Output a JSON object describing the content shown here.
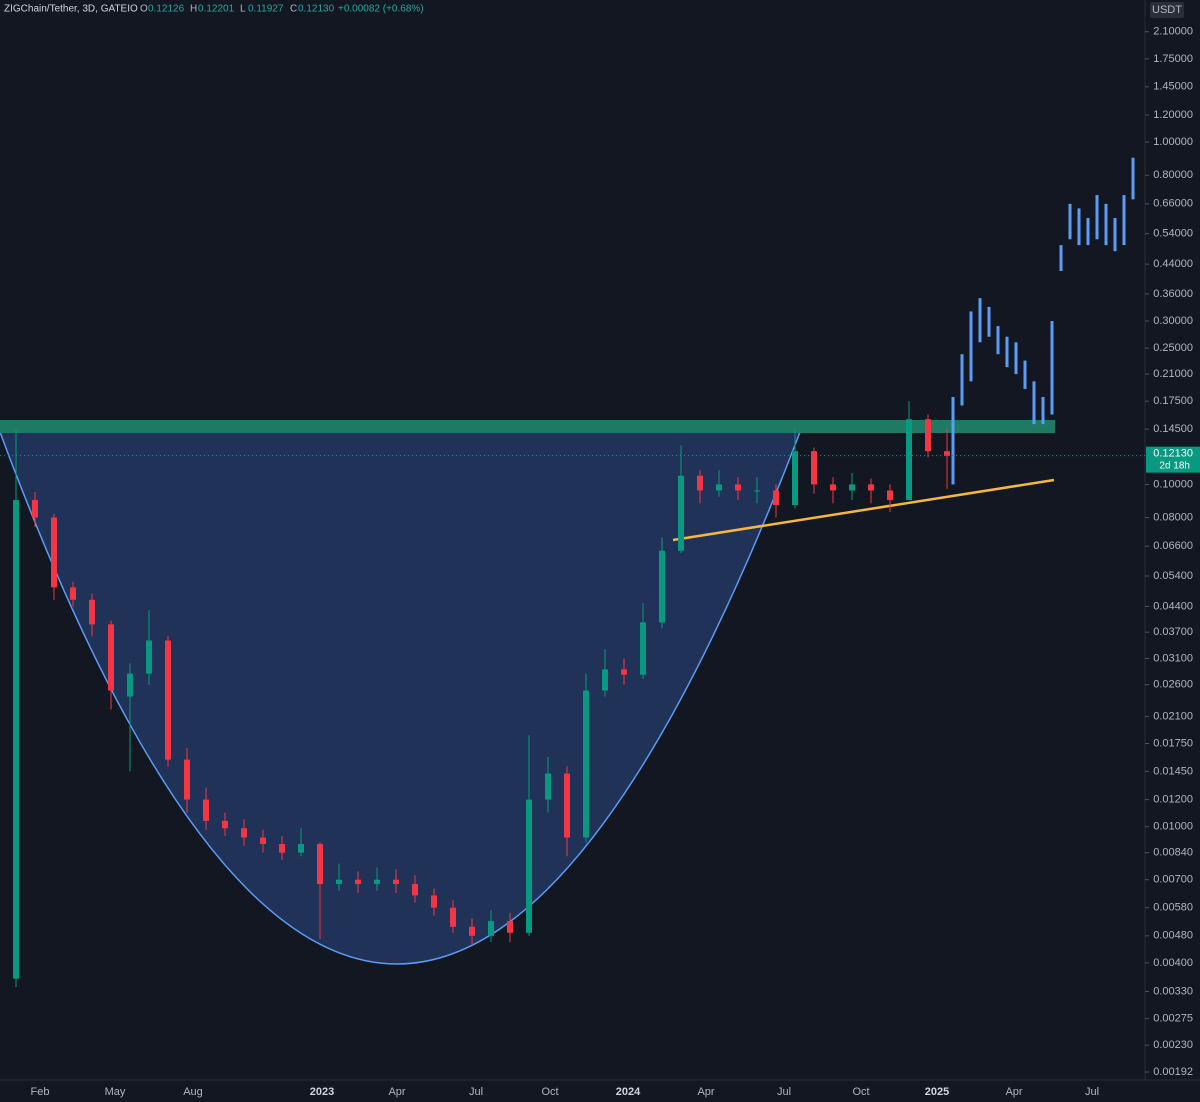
{
  "header": {
    "symbol": "ZIGChain/Tether, 3D, GATEIO",
    "ohlc": [
      {
        "label": "O",
        "value": "0.12126"
      },
      {
        "label": "H",
        "value": "0.12201"
      },
      {
        "label": "L",
        "value": "0.11927"
      },
      {
        "label": "C",
        "value": "0.12130"
      }
    ],
    "change": "+0.00082 (+0.68%)"
  },
  "chart_data": {
    "type": "candlestick",
    "currency": "USDT",
    "log_scale": true,
    "ylim": [
      0.00182,
      2.6
    ],
    "yticks": [
      {
        "value": 2.1,
        "label": "2.10000"
      },
      {
        "value": 1.75,
        "label": "1.75000"
      },
      {
        "value": 1.45,
        "label": "1.45000"
      },
      {
        "value": 1.2,
        "label": "1.20000"
      },
      {
        "value": 1,
        "label": "1.00000"
      },
      {
        "value": 0.8,
        "label": "0.80000"
      },
      {
        "value": 0.66,
        "label": "0.66000"
      },
      {
        "value": 0.54,
        "label": "0.54000"
      },
      {
        "value": 0.44,
        "label": "0.44000"
      },
      {
        "value": 0.36,
        "label": "0.36000"
      },
      {
        "value": 0.3,
        "label": "0.30000"
      },
      {
        "value": 0.25,
        "label": "0.25000"
      },
      {
        "value": 0.21,
        "label": "0.21000"
      },
      {
        "value": 0.175,
        "label": "0.17500"
      },
      {
        "value": 0.145,
        "label": "0.14500"
      },
      {
        "value": 0.1,
        "label": "0.10000"
      },
      {
        "value": 0.08,
        "label": "0.08000"
      },
      {
        "value": 0.066,
        "label": "0.06600"
      },
      {
        "value": 0.054,
        "label": "0.05400"
      },
      {
        "value": 0.044,
        "label": "0.04400"
      },
      {
        "value": 0.037,
        "label": "0.03700"
      },
      {
        "value": 0.031,
        "label": "0.03100"
      },
      {
        "value": 0.026,
        "label": "0.02600"
      },
      {
        "value": 0.021,
        "label": "0.02100"
      },
      {
        "value": 0.0175,
        "label": "0.01750"
      },
      {
        "value": 0.0145,
        "label": "0.01450"
      },
      {
        "value": 0.012,
        "label": "0.01200"
      },
      {
        "value": 0.01,
        "label": "0.01000"
      },
      {
        "value": 0.0084,
        "label": "0.00840"
      },
      {
        "value": 0.007,
        "label": "0.00700"
      },
      {
        "value": 0.0058,
        "label": "0.00580"
      },
      {
        "value": 0.0048,
        "label": "0.00480"
      },
      {
        "value": 0.004,
        "label": "0.00400"
      },
      {
        "value": 0.0033,
        "label": "0.00330"
      },
      {
        "value": 0.00275,
        "label": "0.00275"
      },
      {
        "value": 0.0023,
        "label": "0.00230"
      },
      {
        "value": 0.00192,
        "label": "0.00192"
      }
    ],
    "xticks": [
      "Feb",
      "May",
      "Aug",
      "2023",
      "Apr",
      "Jul",
      "Oct",
      "2024",
      "Apr",
      "Jul",
      "Oct",
      "2025",
      "Apr",
      "Jul"
    ],
    "up_color": "#089981",
    "down_color": "#f23645",
    "open": [
      0.0036,
      0.09,
      0.08,
      0.05,
      0.046,
      0.039,
      0.024,
      0.028,
      0.035,
      0.0157,
      0.012,
      0.0104,
      0.0099,
      0.0093,
      0.0089,
      0.0084,
      0.0089,
      0.0068,
      0.007,
      0.0068,
      0.007,
      0.0068,
      0.0063,
      0.0058,
      0.0051,
      0.0048,
      0.0053,
      0.0049,
      0.012,
      0.0143,
      0.0093,
      0.025,
      0.0288,
      0.0278,
      0.0395,
      0.064,
      0.106,
      0.096,
      0.1,
      0.096,
      0.096,
      0.087,
      0.125,
      0.1,
      0.096,
      0.1,
      0.096,
      0.09,
      0.155,
      0.125
    ],
    "high": [
      0.145,
      0.095,
      0.082,
      0.052,
      0.048,
      0.04,
      0.03,
      0.043,
      0.036,
      0.017,
      0.013,
      0.011,
      0.0105,
      0.0098,
      0.0094,
      0.0099,
      0.009,
      0.0078,
      0.0074,
      0.0076,
      0.0075,
      0.0072,
      0.0066,
      0.0061,
      0.0054,
      0.0057,
      0.0056,
      0.0185,
      0.016,
      0.015,
      0.028,
      0.033,
      0.031,
      0.045,
      0.07,
      0.13,
      0.11,
      0.11,
      0.105,
      0.105,
      0.1,
      0.145,
      0.128,
      0.105,
      0.108,
      0.104,
      0.1,
      0.175,
      0.16,
      0.145
    ],
    "low": [
      0.0034,
      0.075,
      0.046,
      0.044,
      0.036,
      0.022,
      0.0145,
      0.026,
      0.015,
      0.011,
      0.0098,
      0.0094,
      0.0088,
      0.0084,
      0.008,
      0.0082,
      0.0047,
      0.0065,
      0.0064,
      0.0065,
      0.0064,
      0.006,
      0.0055,
      0.0049,
      0.0045,
      0.0046,
      0.0046,
      0.0048,
      0.011,
      0.0082,
      0.009,
      0.024,
      0.026,
      0.027,
      0.038,
      0.063,
      0.088,
      0.092,
      0.09,
      0.088,
      0.08,
      0.085,
      0.094,
      0.088,
      0.09,
      0.088,
      0.083,
      0.09,
      0.12,
      0.097
    ],
    "close": [
      0.09,
      0.08,
      0.05,
      0.046,
      0.039,
      0.025,
      0.028,
      0.035,
      0.0157,
      0.012,
      0.0104,
      0.0099,
      0.0093,
      0.0089,
      0.0084,
      0.0089,
      0.0068,
      0.007,
      0.0068,
      0.007,
      0.0068,
      0.0063,
      0.0058,
      0.0051,
      0.0048,
      0.0053,
      0.0049,
      0.012,
      0.0143,
      0.0093,
      0.025,
      0.0288,
      0.0278,
      0.0395,
      0.064,
      0.106,
      0.096,
      0.1,
      0.096,
      0.096,
      0.087,
      0.125,
      0.1,
      0.096,
      0.1,
      0.096,
      0.09,
      0.155,
      0.125,
      0.1213
    ],
    "projection": {
      "color": "#5b9cf6",
      "high": [
        0.18,
        0.24,
        0.32,
        0.35,
        0.33,
        0.29,
        0.27,
        0.26,
        0.23,
        0.2,
        0.18,
        0.3,
        0.5,
        0.66,
        0.64,
        0.6,
        0.7,
        0.66,
        0.6,
        0.7,
        0.9
      ],
      "low": [
        0.1,
        0.17,
        0.2,
        0.26,
        0.27,
        0.24,
        0.22,
        0.21,
        0.19,
        0.15,
        0.15,
        0.16,
        0.42,
        0.52,
        0.5,
        0.5,
        0.52,
        0.5,
        0.48,
        0.5,
        0.68
      ]
    },
    "last_price": {
      "value": 0.1213,
      "label": "0.12130"
    },
    "countdown": "2d 18h"
  }
}
